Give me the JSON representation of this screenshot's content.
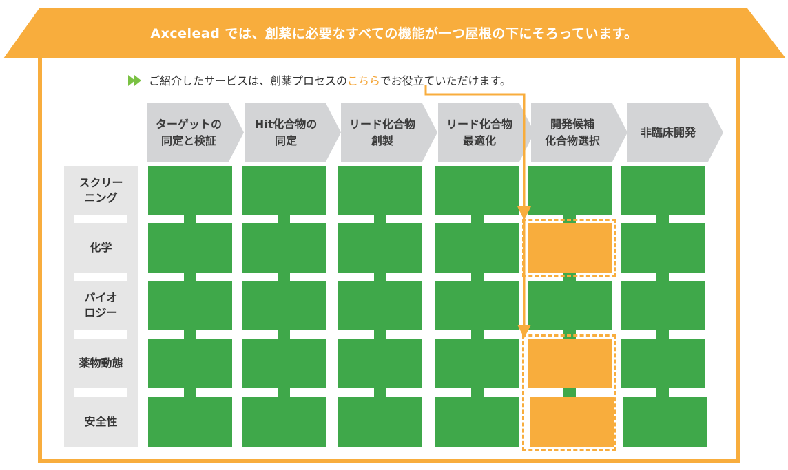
{
  "title": "Axcelead では、創薬に必要なすべての機能が一つ屋根の下にそろっています。",
  "subtitle": {
    "before": "ご紹介したサービスは、創薬プロセスの",
    "link": "こちら",
    "after": "でお役立ていただけます。",
    "icon": "double-arrow-right-icon"
  },
  "colors": {
    "green": "#3fa84a",
    "orange": "#f8ad3d",
    "phase_gray": "#d3d4d6",
    "label_gray": "#e6e6e6",
    "arrow_green": "#7ac143"
  },
  "phases": [
    {
      "line1": "ターゲットの",
      "line2": "同定と検証"
    },
    {
      "line1": "Hit化合物の",
      "line2": "同定"
    },
    {
      "line1": "リード化合物",
      "line2": "創製"
    },
    {
      "line1": "リード化合物",
      "line2": "最適化"
    },
    {
      "line1": "開発候補",
      "line2": "化合物選択"
    },
    {
      "line1": "非臨床開発",
      "line2": ""
    }
  ],
  "rows": [
    {
      "line1": "スクリー",
      "line2": "ニング"
    },
    {
      "line1": "化学",
      "line2": ""
    },
    {
      "line1": "バイオ",
      "line2": "ロジー"
    },
    {
      "line1": "薬物動態",
      "line2": ""
    },
    {
      "line1": "安全性",
      "line2": ""
    }
  ],
  "grid": [
    [
      "green",
      "green",
      "green",
      "green",
      "green",
      "green"
    ],
    [
      "green",
      "green",
      "green",
      "green",
      "orange",
      "green"
    ],
    [
      "green",
      "green",
      "green",
      "green",
      "green",
      "green"
    ],
    [
      "green",
      "green",
      "green",
      "green",
      "orange",
      "green"
    ],
    [
      "green",
      "green",
      "green",
      "green",
      "orange",
      "green"
    ]
  ]
}
